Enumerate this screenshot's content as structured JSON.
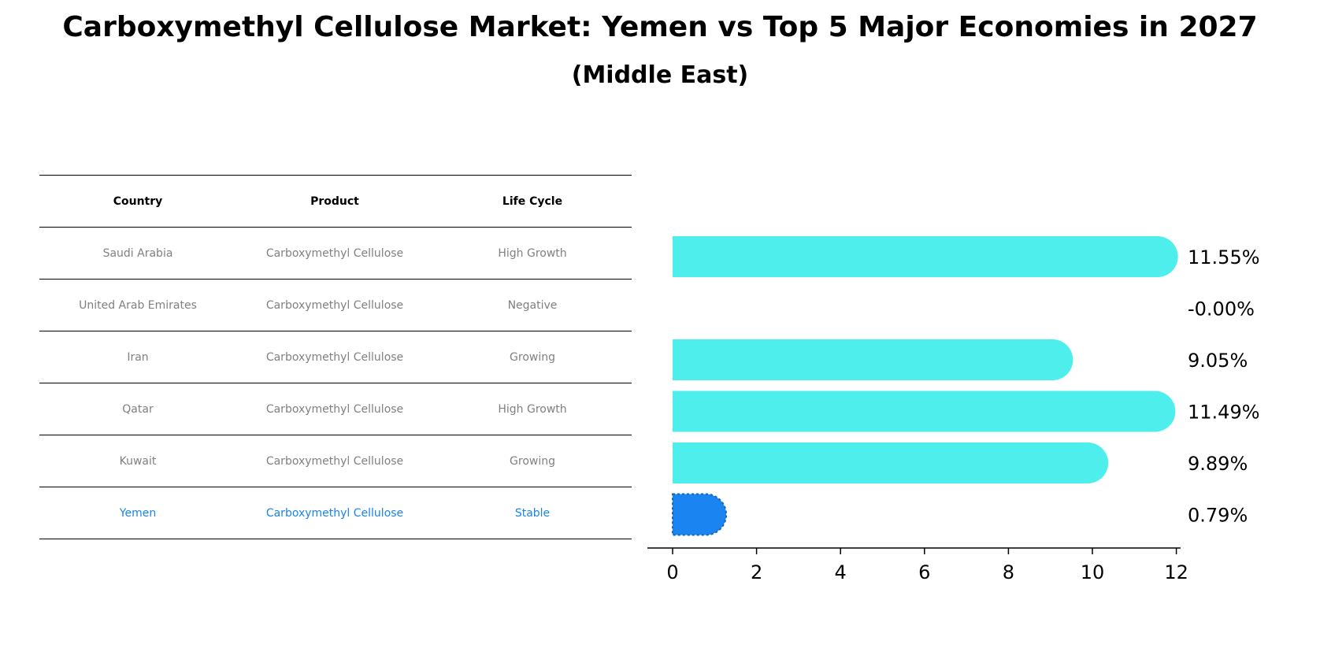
{
  "title": "Carboxymethyl Cellulose Market: Yemen vs Top 5 Major Economies in 2027",
  "subtitle": "(Middle East)",
  "table": {
    "headers": [
      "Country",
      "Product",
      "Life Cycle"
    ],
    "rows": [
      [
        "Saudi Arabia",
        "Carboxymethyl Cellulose",
        "High Growth"
      ],
      [
        "United Arab Emirates",
        "Carboxymethyl Cellulose",
        "Negative"
      ],
      [
        "Iran",
        "Carboxymethyl Cellulose",
        "Growing"
      ],
      [
        "Qatar",
        "Carboxymethyl Cellulose",
        "High Growth"
      ],
      [
        "Kuwait",
        "Carboxymethyl Cellulose",
        "Growing"
      ],
      [
        "Yemen",
        "Carboxymethyl Cellulose",
        "Stable"
      ]
    ],
    "highlight_row": 5
  },
  "chart_data": {
    "type": "bar",
    "orientation": "horizontal",
    "categories": [
      "Saudi Arabia",
      "United Arab Emirates",
      "Iran",
      "Qatar",
      "Kuwait",
      "Yemen"
    ],
    "values": [
      11.55,
      -0.0,
      9.05,
      11.49,
      9.89,
      0.79
    ],
    "value_labels": [
      "11.55%",
      "-0.00%",
      "9.05%",
      "11.49%",
      "9.89%",
      "0.79%"
    ],
    "xticks": [
      "0",
      "2",
      "4",
      "6",
      "8",
      "10",
      "12"
    ],
    "xlim": [
      -0.6,
      12.1
    ],
    "grid": false,
    "colors": {
      "default": "#4eeeec",
      "highlight": "#1a84f0"
    },
    "highlight_index": 5
  }
}
